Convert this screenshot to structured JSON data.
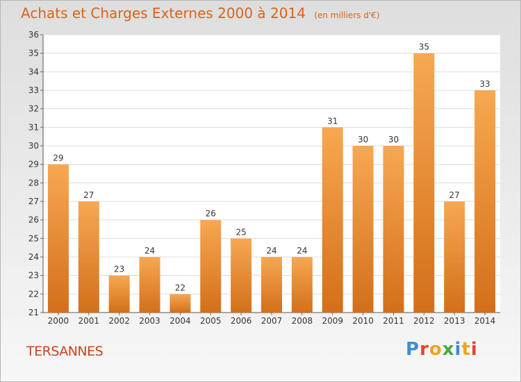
{
  "title": "Achats et Charges Externes 2000 à 2014",
  "unit": "(en milliers d'€)",
  "town": "TERSANNES",
  "logo": {
    "text": "Proxiti",
    "letters": [
      {
        "ch": "P",
        "color": "#3f8fd0"
      },
      {
        "ch": "r",
        "color": "#e2462b"
      },
      {
        "ch": "o",
        "color": "#f0a41c"
      },
      {
        "ch": "x",
        "color": "#4aa844"
      },
      {
        "ch": "i",
        "color": "#3f8fd0"
      },
      {
        "ch": "t",
        "color": "#f0a41c"
      },
      {
        "ch": "i",
        "color": "#e2462b"
      }
    ]
  },
  "colors": {
    "bar_top": "#f7a852",
    "bar_bottom": "#d36f1a",
    "title": "#d4651e",
    "town": "#c5461c"
  },
  "chart_data": {
    "type": "bar",
    "categories": [
      "2000",
      "2001",
      "2002",
      "2003",
      "2004",
      "2005",
      "2006",
      "2007",
      "2008",
      "2009",
      "2010",
      "2011",
      "2012",
      "2013",
      "2014"
    ],
    "values": [
      29,
      27,
      23,
      24,
      22,
      26,
      25,
      24,
      24,
      31,
      30,
      30,
      35,
      27,
      33
    ],
    "ylim": [
      21,
      36
    ],
    "yticks": [
      21,
      22,
      23,
      24,
      25,
      26,
      27,
      28,
      29,
      30,
      31,
      32,
      33,
      34,
      35,
      36
    ],
    "grid": true,
    "title": "Achats et Charges Externes 2000 à 2014",
    "xlabel": "",
    "ylabel": ""
  }
}
